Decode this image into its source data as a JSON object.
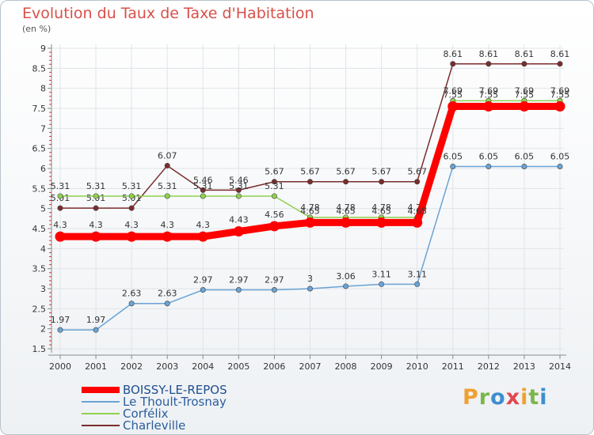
{
  "chart_data": {
    "type": "line",
    "title": "Evolution du Taux de Taxe d'Habitation",
    "ylabel": "(en %)",
    "xlabel": "",
    "ylim": [
      1.5,
      9
    ],
    "yticks": [
      "1.5",
      "2",
      "2.5",
      "3",
      "3.5",
      "4",
      "4.5",
      "5",
      "5.5",
      "6",
      "6.5",
      "7",
      "7.5",
      "8",
      "8.5",
      "9"
    ],
    "categories": [
      "2000",
      "2001",
      "2002",
      "2003",
      "2004",
      "2005",
      "2006",
      "2007",
      "2008",
      "2009",
      "2010",
      "2011",
      "2012",
      "2013",
      "2014"
    ],
    "series": [
      {
        "name": "Charleville",
        "color": "#7b2c2c",
        "values": [
          5.01,
          5.01,
          5.01,
          6.07,
          5.46,
          5.46,
          5.67,
          5.67,
          5.67,
          5.67,
          5.67,
          8.61,
          8.61,
          8.61,
          8.61
        ],
        "labels": [
          "5.01",
          "5.01",
          "5.01",
          "6.07",
          "5.46",
          "5.46",
          "5.67",
          "5.67",
          "5.67",
          "5.67",
          "5.67",
          "8.61",
          "8.61",
          "8.61",
          "8.61"
        ]
      },
      {
        "name": "Corfélix",
        "color": "#8fd14f",
        "values": [
          5.31,
          5.31,
          5.31,
          5.31,
          5.31,
          5.31,
          5.31,
          4.78,
          4.78,
          4.78,
          4.78,
          7.69,
          7.69,
          7.69,
          7.69
        ],
        "labels": [
          "5.31",
          "5.31",
          "5.31",
          "5.31",
          "5.31",
          "5.31",
          "5.31",
          "4.78",
          "4.78",
          "4.78",
          "4.78",
          "7.69",
          "7.69",
          "7.69",
          "7.69"
        ]
      },
      {
        "name": "Le Thoult-Trosnay",
        "color": "#6aa3d4",
        "values": [
          1.97,
          1.97,
          2.63,
          2.63,
          2.97,
          2.97,
          2.97,
          3,
          3.06,
          3.11,
          3.11,
          6.05,
          6.05,
          6.05,
          6.05
        ],
        "labels": [
          "1.97",
          "1.97",
          "2.63",
          "2.63",
          "2.97",
          "2.97",
          "2.97",
          "3",
          "3.06",
          "3.11",
          "3.11",
          "6.05",
          "6.05",
          "6.05",
          "6.05"
        ]
      },
      {
        "name": "BOISSY-LE-REPOS",
        "color": "#ff0000",
        "values": [
          4.3,
          4.3,
          4.3,
          4.3,
          4.3,
          4.43,
          4.56,
          4.65,
          4.65,
          4.65,
          4.65,
          7.55,
          7.55,
          7.55,
          7.55
        ],
        "labels": [
          "4.3",
          "4.3",
          "4.3",
          "4.3",
          "4.3",
          "4.43",
          "4.56",
          "4.65",
          "4.65",
          "4.65",
          "4.65",
          "7.55",
          "7.55",
          "7.55",
          "7.55"
        ]
      }
    ],
    "legend": [
      "BOISSY-LE-REPOS",
      "Le Thoult-Trosnay",
      "Corfélix",
      "Charleville"
    ],
    "legend_position": "bottom-left"
  },
  "logo": {
    "letters": [
      "P",
      "r",
      "o",
      "x",
      "i",
      "t",
      "i"
    ],
    "colors": [
      "#f0a030",
      "#7ab648",
      "#3e8ed0",
      "#e2484f",
      "#f0a030",
      "#7ab648",
      "#3e8ed0"
    ]
  }
}
